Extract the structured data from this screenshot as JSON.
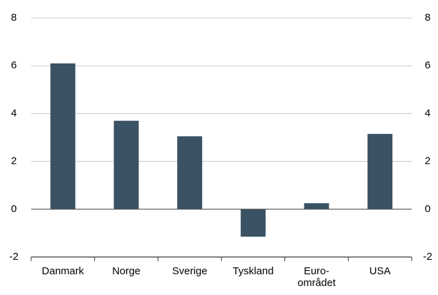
{
  "chart_data": {
    "type": "bar",
    "categories": [
      "Danmark",
      "Norge",
      "Sverige",
      "Tyskland",
      "Euro-\nområdet",
      "USA"
    ],
    "values": [
      6.1,
      3.7,
      3.05,
      -1.15,
      0.25,
      3.15
    ],
    "color": "#3a5263",
    "ylim": [
      -2,
      8
    ],
    "yticks": [
      -2,
      0,
      2,
      4,
      6,
      8
    ],
    "y2lim": [
      -2,
      8
    ],
    "y2ticks": [
      -2,
      0,
      2,
      4,
      6,
      8
    ],
    "grid": true
  }
}
